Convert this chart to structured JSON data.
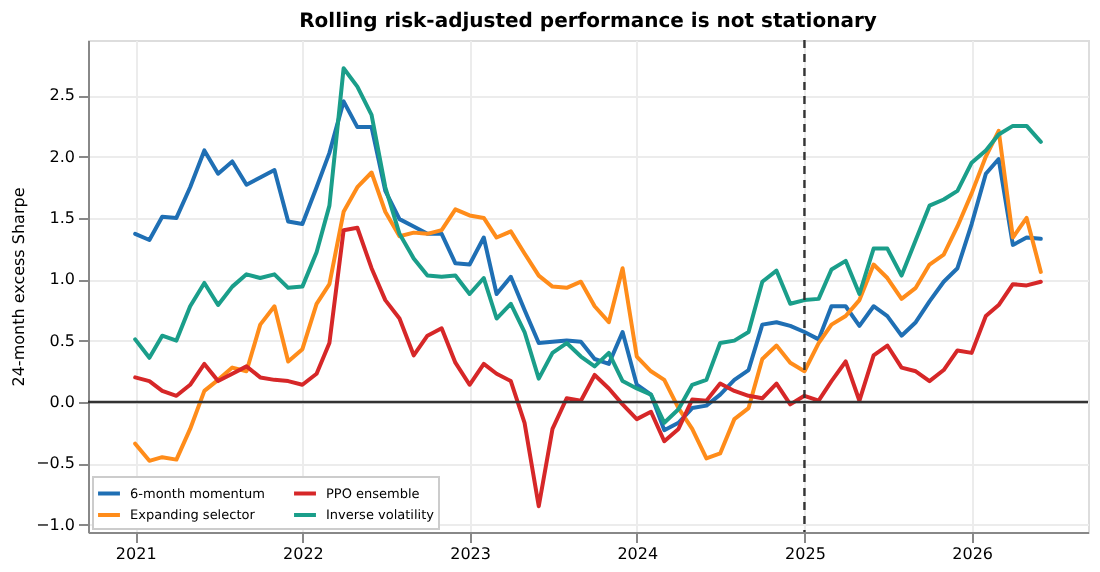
{
  "chart_data": {
    "type": "line",
    "title": "Rolling risk-adjusted performance is not stationary",
    "ylabel": "24-month excess Sharpe",
    "x": [
      "2021-01",
      "2021-02",
      "2021-03",
      "2021-04",
      "2021-05",
      "2021-06",
      "2021-07",
      "2021-08",
      "2021-09",
      "2021-10",
      "2021-11",
      "2021-12",
      "2022-01",
      "2022-02",
      "2022-03",
      "2022-04",
      "2022-05",
      "2022-06",
      "2022-07",
      "2022-08",
      "2022-09",
      "2022-10",
      "2022-11",
      "2022-12",
      "2023-01",
      "2023-02",
      "2023-03",
      "2023-04",
      "2023-05",
      "2023-06",
      "2023-07",
      "2023-08",
      "2023-09",
      "2023-10",
      "2023-11",
      "2023-12",
      "2024-01",
      "2024-02",
      "2024-03",
      "2024-04",
      "2024-05",
      "2024-06",
      "2024-07",
      "2024-08",
      "2024-09",
      "2024-10",
      "2024-11",
      "2024-12",
      "2025-01",
      "2025-02",
      "2025-03",
      "2025-04",
      "2025-05",
      "2025-06",
      "2025-07",
      "2025-08",
      "2025-09",
      "2025-10",
      "2025-11",
      "2025-12",
      "2026-01",
      "2026-02",
      "2026-03",
      "2026-04",
      "2026-05",
      "2026-06"
    ],
    "series": [
      {
        "name": "6-month momentum",
        "color": "#1f6fb4",
        "values": [
          1.37,
          1.32,
          1.51,
          1.5,
          1.75,
          2.05,
          1.86,
          1.96,
          1.77,
          1.83,
          1.89,
          1.47,
          1.45,
          1.75,
          2.03,
          2.45,
          2.24,
          2.24,
          1.72,
          1.49,
          1.43,
          1.37,
          1.37,
          1.13,
          1.12,
          1.34,
          0.88,
          1.02,
          0.75,
          0.48,
          0.49,
          0.5,
          0.49,
          0.35,
          0.31,
          0.57,
          0.14,
          0.06,
          -0.23,
          -0.17,
          -0.05,
          -0.03,
          0.06,
          0.18,
          0.26,
          0.63,
          0.65,
          0.62,
          0.57,
          0.51,
          0.78,
          0.78,
          0.62,
          0.78,
          0.7,
          0.54,
          0.65,
          0.82,
          0.98,
          1.09,
          1.45,
          1.86,
          1.98,
          1.28,
          1.34,
          1.33
        ]
      },
      {
        "name": "Expanding selector",
        "color": "#ff8c1a",
        "values": [
          -0.34,
          -0.48,
          -0.45,
          -0.47,
          -0.22,
          0.09,
          0.18,
          0.28,
          0.25,
          0.63,
          0.78,
          0.33,
          0.43,
          0.8,
          0.96,
          1.55,
          1.75,
          1.87,
          1.55,
          1.35,
          1.38,
          1.37,
          1.4,
          1.57,
          1.52,
          1.5,
          1.34,
          1.39,
          1.21,
          1.03,
          0.94,
          0.93,
          0.98,
          0.78,
          0.65,
          1.09,
          0.37,
          0.25,
          0.18,
          -0.05,
          -0.22,
          -0.46,
          -0.42,
          -0.14,
          -0.05,
          0.35,
          0.46,
          0.32,
          0.25,
          0.48,
          0.63,
          0.7,
          0.83,
          1.12,
          1.01,
          0.84,
          0.93,
          1.12,
          1.2,
          1.43,
          1.7,
          2.0,
          2.21,
          1.34,
          1.5,
          1.06
        ]
      },
      {
        "name": "PPO ensemble",
        "color": "#d62728",
        "values": [
          0.2,
          0.17,
          0.09,
          0.05,
          0.14,
          0.31,
          0.17,
          0.23,
          0.29,
          0.2,
          0.18,
          0.17,
          0.14,
          0.23,
          0.48,
          1.4,
          1.42,
          1.09,
          0.83,
          0.68,
          0.38,
          0.54,
          0.6,
          0.32,
          0.14,
          0.31,
          0.23,
          0.17,
          -0.17,
          -0.85,
          -0.22,
          0.03,
          0.01,
          0.22,
          0.11,
          -0.02,
          -0.14,
          -0.08,
          -0.32,
          -0.22,
          0.02,
          0.01,
          0.15,
          0.09,
          0.05,
          0.03,
          0.15,
          -0.02,
          0.05,
          0.01,
          0.17,
          0.33,
          0.01,
          0.38,
          0.46,
          0.28,
          0.25,
          0.17,
          0.26,
          0.42,
          0.4,
          0.7,
          0.79,
          0.96,
          0.95,
          0.98
        ]
      },
      {
        "name": "Inverse volatility",
        "color": "#1a9e8a",
        "values": [
          0.51,
          0.36,
          0.54,
          0.5,
          0.78,
          0.97,
          0.79,
          0.94,
          1.04,
          1.01,
          1.04,
          0.93,
          0.94,
          1.22,
          1.6,
          2.72,
          2.57,
          2.34,
          1.75,
          1.37,
          1.17,
          1.03,
          1.02,
          1.03,
          0.88,
          1.01,
          0.68,
          0.8,
          0.57,
          0.19,
          0.4,
          0.48,
          0.37,
          0.29,
          0.4,
          0.17,
          0.11,
          0.06,
          -0.17,
          -0.06,
          0.14,
          0.18,
          0.48,
          0.5,
          0.57,
          0.98,
          1.07,
          0.8,
          0.83,
          0.84,
          1.08,
          1.15,
          0.88,
          1.25,
          1.25,
          1.03,
          1.32,
          1.6,
          1.65,
          1.72,
          1.95,
          2.05,
          2.18,
          2.25,
          2.25,
          2.12
        ]
      }
    ],
    "xlim": [
      "2020-09-20",
      "2026-09-12"
    ],
    "xticks": [
      "2021",
      "2022",
      "2023",
      "2024",
      "2025",
      "2026"
    ],
    "ylim": [
      -1.06,
      2.95
    ],
    "yticks": [
      {
        "value": -1,
        "label": "−1.0"
      },
      {
        "value": -0.5,
        "label": "−0.5"
      },
      {
        "value": 0,
        "label": "0.0"
      },
      {
        "value": 0.5,
        "label": "0.5"
      },
      {
        "value": 1,
        "label": "1.0"
      },
      {
        "value": 1.5,
        "label": "1.5"
      },
      {
        "value": 2,
        "label": "2.0"
      },
      {
        "value": 2.5,
        "label": "2.5"
      }
    ],
    "ref_lines": [
      {
        "axis": "y",
        "value": 0,
        "color": "#333333",
        "line_style": "solid"
      },
      {
        "axis": "x",
        "value": "2025-01",
        "color": "#333333",
        "line_style": "dashed"
      }
    ],
    "grid": true,
    "legend": "bottom left",
    "marker": "none",
    "line_style": "solid"
  }
}
